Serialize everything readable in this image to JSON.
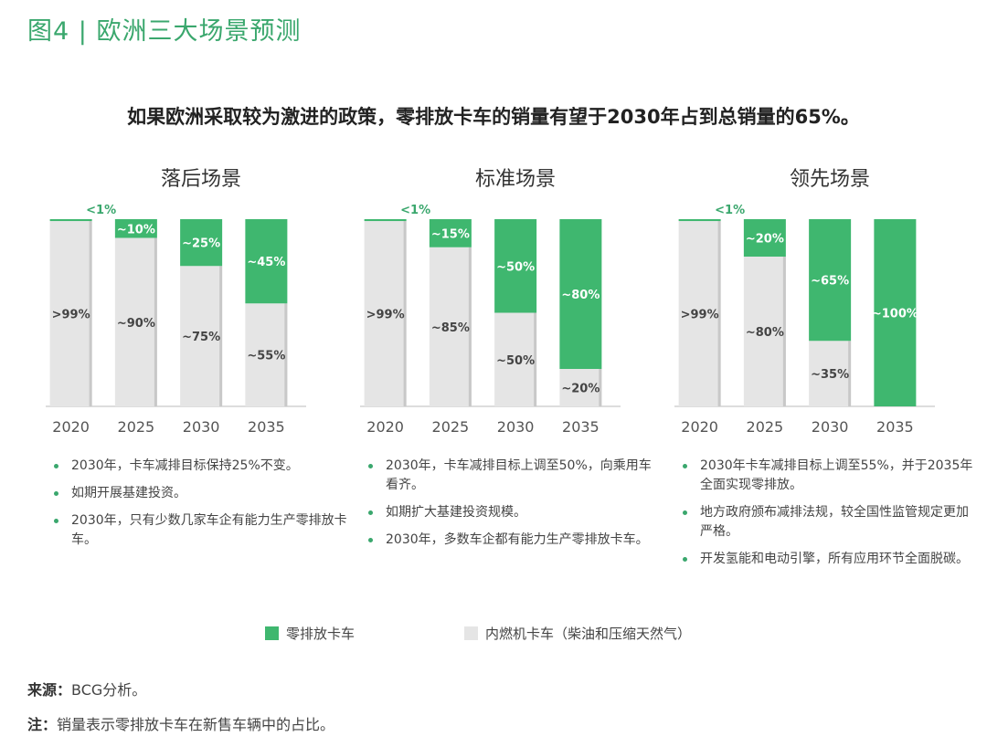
{
  "figure_title": "图4 | 欧洲三大场景预测",
  "headline": "如果欧洲采取较为激进的政策，零排放卡车的销量有望于2030年占到总销量的65%。",
  "colors": {
    "green": "#3fb76f",
    "grey": "#e5e5e5",
    "grey_edge": "#c8c8c8"
  },
  "legend": {
    "zero_emission": "零排放卡车",
    "ice": "内燃机卡车（柴油和压缩天然气）"
  },
  "chart_data": [
    {
      "type": "bar",
      "title": "落后场景",
      "categories": [
        "2020",
        "2025",
        "2030",
        "2035"
      ],
      "series": [
        {
          "name": "零排放卡车",
          "values": [
            1,
            10,
            25,
            45
          ],
          "labels": [
            "<1%",
            "~10%",
            "~25%",
            "~45%"
          ]
        },
        {
          "name": "内燃机卡车（柴油和压缩天然气）",
          "values": [
            99,
            90,
            75,
            55
          ],
          "labels": [
            ">99%",
            "~90%",
            "~75%",
            "~55%"
          ]
        }
      ],
      "ylim": [
        0,
        100
      ],
      "notes": [
        "2030年，卡车减排目标保持25%不变。",
        "如期开展基建投资。",
        "2030年，只有少数几家车企有能力生产零排放卡车。"
      ]
    },
    {
      "type": "bar",
      "title": "标准场景",
      "categories": [
        "2020",
        "2025",
        "2030",
        "2035"
      ],
      "series": [
        {
          "name": "零排放卡车",
          "values": [
            1,
            15,
            50,
            80
          ],
          "labels": [
            "<1%",
            "~15%",
            "~50%",
            "~80%"
          ]
        },
        {
          "name": "内燃机卡车（柴油和压缩天然气）",
          "values": [
            99,
            85,
            50,
            20
          ],
          "labels": [
            ">99%",
            "~85%",
            "~50%",
            "~20%"
          ]
        }
      ],
      "ylim": [
        0,
        100
      ],
      "notes": [
        "2030年，卡车减排目标上调至50%，向乘用车看齐。",
        "如期扩大基建投资规模。",
        "2030年，多数车企都有能力生产零排放卡车。"
      ]
    },
    {
      "type": "bar",
      "title": "领先场景",
      "categories": [
        "2020",
        "2025",
        "2030",
        "2035"
      ],
      "series": [
        {
          "name": "零排放卡车",
          "values": [
            1,
            20,
            65,
            100
          ],
          "labels": [
            "<1%",
            "~20%",
            "~65%",
            "~100%"
          ]
        },
        {
          "name": "内燃机卡车（柴油和压缩天然气）",
          "values": [
            99,
            80,
            35,
            0
          ],
          "labels": [
            ">99%",
            "~80%",
            "~35%",
            ""
          ]
        }
      ],
      "ylim": [
        0,
        100
      ],
      "notes": [
        "2030年卡车减排目标上调至55%，并于2035年全面实现零排放。",
        "地方政府颁布减排法规，较全国性监管规定更加严格。",
        "开发氢能和电动引擎，所有应用环节全面脱碳。"
      ]
    }
  ],
  "footer": {
    "source_label": "来源：",
    "source_text": "BCG分析。",
    "note_label": "注：",
    "note_text": "销量表示零排放卡车在新售车辆中的占比。"
  }
}
